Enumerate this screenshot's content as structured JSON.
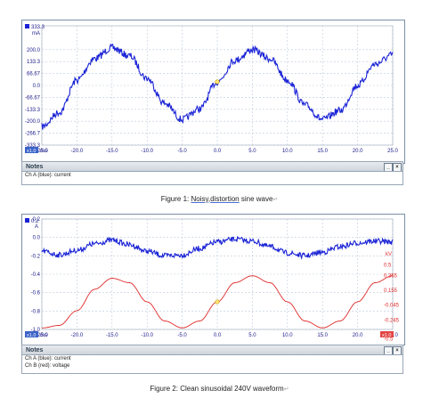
{
  "figure1": {
    "caption_prefix": "Figure 1:",
    "caption_u1": "Noisy",
    "caption_sep": ",",
    "caption_u2": "distortion",
    "caption_suffix": "sine wave",
    "notes_title": "Notes",
    "notes_lines": [
      "Ch A (blue): current"
    ],
    "y_unit_value": "333.3",
    "y_unit": "mA",
    "x_unit_box": "x1.0",
    "x_unit": "ms",
    "colors": {
      "channel_a": "#1a23d6",
      "grid": "#bccadb"
    }
  },
  "figure2": {
    "caption": "Figure 2: Clean sinusoidal 240V waveform",
    "notes_title": "Notes",
    "notes_lines": [
      "Ch A (blue): current",
      "Ch B (red): voltage"
    ],
    "y_unit_value": "0.2",
    "y_unit": "A",
    "y2_unit": "kV",
    "x_unit_box": "x1.0",
    "x_unit": "ms",
    "right_box": "x1.0",
    "colors": {
      "channel_a": "#1a23d6",
      "channel_b": "#e02a2a",
      "grid": "#bccadb"
    }
  },
  "chart_data": [
    {
      "type": "line",
      "title": "",
      "xlabel": "ms",
      "ylabel": "mA",
      "xlim": [
        -25,
        25
      ],
      "ylim": [
        -333.3,
        333.3
      ],
      "x_ticks": [
        "-25.0",
        "-20.0",
        "-15.0",
        "-10.0",
        "-5.0",
        "0.0",
        "5.0",
        "10.0",
        "15.0",
        "20.0",
        "25.0"
      ],
      "y_ticks": [
        "200.0",
        "133.3",
        "66.67",
        "0.0",
        "-66.67",
        "-133.3",
        "-200.0",
        "-266.7",
        "-333.3"
      ],
      "grid": true,
      "series": [
        {
          "name": "Ch A (blue): current",
          "color": "#1a23d6",
          "x": [
            -25,
            -22.5,
            -20,
            -17.5,
            -15,
            -12.5,
            -10,
            -7.5,
            -5,
            -2.5,
            0,
            2.5,
            5,
            7.5,
            10,
            12.5,
            15,
            17.5,
            20,
            22.5,
            25
          ],
          "y": [
            -230,
            -150,
            30,
            150,
            210,
            165,
            40,
            -100,
            -190,
            -130,
            20,
            140,
            200,
            150,
            30,
            -110,
            -190,
            -140,
            0,
            120,
            170
          ]
        }
      ]
    },
    {
      "type": "line",
      "title": "",
      "xlabel": "ms",
      "ylabel": "A",
      "xlim": [
        -25,
        25
      ],
      "ylim": [
        -1.0,
        0.2
      ],
      "x_ticks": [
        "-25.0",
        "-20.0",
        "-15.0",
        "-10.0",
        "-5.0",
        "0.0",
        "5.0",
        "10.0",
        "15.0",
        "20.0",
        "25.0"
      ],
      "y_ticks": [
        "0.2",
        "0.0",
        "-0.2",
        "-0.4",
        "-0.6",
        "-0.8",
        "-1.0"
      ],
      "y2_ticks": [
        "0.5",
        "0.355",
        "0.155",
        "-0.045",
        "-0.245",
        "-0.5"
      ],
      "y2_label": "kV",
      "grid": true,
      "series": [
        {
          "name": "Ch A (blue): current",
          "color": "#1a23d6",
          "x": [
            -25,
            -22.5,
            -20,
            -17.5,
            -15,
            -12.5,
            -10,
            -7.5,
            -5,
            -2.5,
            0,
            2.5,
            5,
            7.5,
            10,
            12.5,
            15,
            17.5,
            20,
            22.5,
            25
          ],
          "y": [
            -0.15,
            -0.19,
            -0.14,
            -0.07,
            -0.03,
            -0.08,
            -0.15,
            -0.2,
            -0.19,
            -0.12,
            -0.05,
            -0.02,
            -0.04,
            -0.1,
            -0.17,
            -0.2,
            -0.16,
            -0.1,
            -0.06,
            -0.04,
            -0.05
          ]
        },
        {
          "name": "Ch B (red): voltage",
          "color": "#e02a2a",
          "x": [
            -25,
            -22.5,
            -20,
            -17.5,
            -15,
            -12.5,
            -10,
            -7.5,
            -5,
            -2.5,
            0,
            2.5,
            5,
            7.5,
            10,
            12.5,
            15,
            17.5,
            20,
            22.5,
            25
          ],
          "y": [
            -0.355,
            -0.32,
            -0.12,
            0.17,
            0.32,
            0.26,
            0.0,
            -0.26,
            -0.355,
            -0.26,
            0.0,
            0.26,
            0.355,
            0.26,
            0.0,
            -0.26,
            -0.355,
            -0.26,
            0.0,
            0.26,
            0.355
          ]
        }
      ]
    }
  ]
}
